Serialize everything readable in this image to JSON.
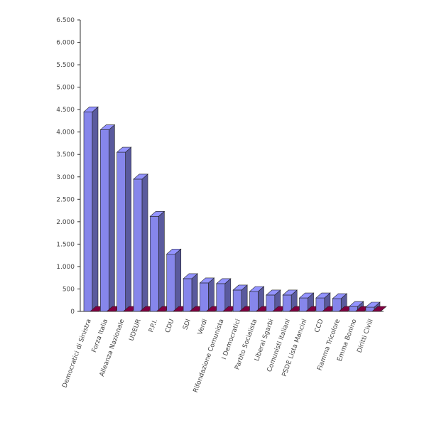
{
  "chart_data": {
    "type": "bar3d",
    "categories": [
      "Democratici di Sinistra",
      "Forza Italia",
      "Alleanza Nazionale",
      "UDEUR",
      "P.P.I.",
      "CDU",
      "SDI",
      "Verdi",
      "Rifondazione Comunista",
      "I Democratici",
      "Partito Socialista",
      "Liberal Sgarbi",
      "Comunisti Italiani",
      "PSDE Lista Mancini",
      "CCD",
      "Fiamma Tricolore",
      "Emma Bonino",
      "Diritti Civili"
    ],
    "series": [
      {
        "color": "#8080e0",
        "values": [
          4450,
          4050,
          3550,
          2950,
          2120,
          1280,
          730,
          635,
          620,
          476,
          444,
          365,
          365,
          300,
          300,
          285,
          110,
          95
        ]
      },
      {
        "color": "#800040",
        "values": [
          0,
          0,
          0,
          0,
          0,
          0,
          0,
          0,
          0,
          0,
          0,
          0,
          0,
          0,
          0,
          0,
          0,
          0
        ]
      }
    ],
    "ylim": [
      0,
      6500
    ],
    "yticks": [
      0,
      500,
      {
        "value": 1000,
        "label": "1.000"
      },
      {
        "value": 1500,
        "label": "1.500"
      },
      {
        "value": 2000,
        "label": "2.000"
      },
      {
        "value": 2500,
        "label": "2.500"
      },
      {
        "value": 3000,
        "label": "3.000"
      },
      {
        "value": 3500,
        "label": "3.500"
      },
      {
        "value": 4000,
        "label": "4.000"
      },
      {
        "value": 4500,
        "label": "4.500"
      },
      {
        "value": 5000,
        "label": "5.000"
      },
      {
        "value": 5500,
        "label": "5.500"
      },
      {
        "value": 6000,
        "label": "6.000"
      },
      {
        "value": 6500,
        "label": "6.500"
      }
    ],
    "grid": false
  }
}
